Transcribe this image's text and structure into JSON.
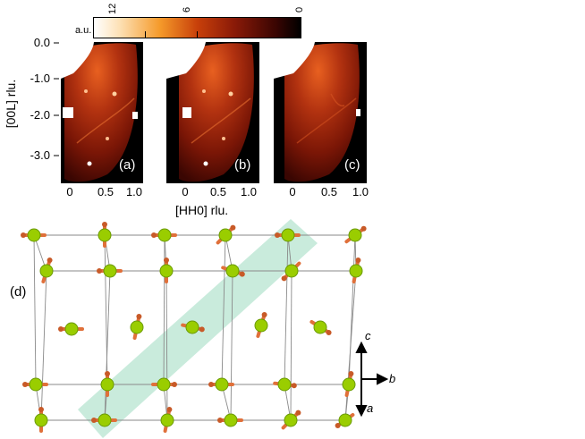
{
  "colorbar": {
    "unit": "a.u.",
    "ticks": [
      "12",
      "6",
      "0"
    ],
    "colors": {
      "high": "#ffffff",
      "mid": "#f07a10",
      "mid2": "#8a1a08",
      "low": "#000000"
    }
  },
  "maps": {
    "y_axis_label": "[00L] rlu.",
    "x_axis_label": "[HH0] rlu.",
    "y_ticks": [
      "0.0",
      "-1.0",
      "-2.0",
      "-3.0"
    ],
    "x_ticks": [
      "0",
      "0.5",
      "1.0"
    ],
    "panels": [
      {
        "label": "(a)"
      },
      {
        "label": "(b)"
      },
      {
        "label": "(c)"
      }
    ]
  },
  "lattice": {
    "label": "(d)",
    "axes": {
      "c": "c",
      "b": "b",
      "a": "a"
    },
    "highlight_color": "#bfe8d6",
    "atom_color": "#9acd00",
    "spin_color": "#e0703a"
  }
}
